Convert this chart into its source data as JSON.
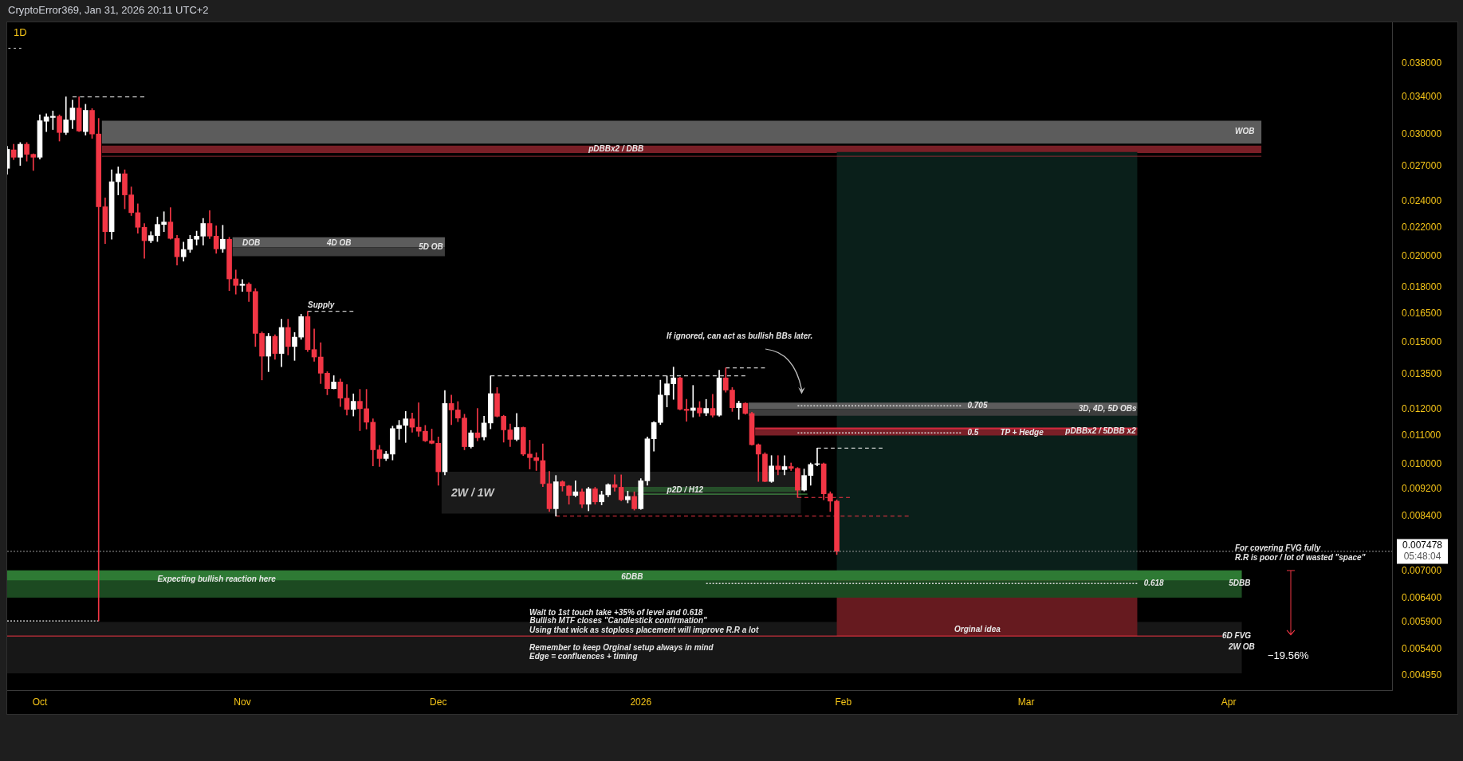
{
  "chart_data": {
    "type": "candlestick",
    "title": "1D",
    "subtitle": "CryptoError369, Jan 31, 2026 20:11 UTC+2",
    "x": [
      "2025-09-26",
      "2025-09-27",
      "2025-09-28",
      "2025-09-29",
      "2025-09-30",
      "2025-10-01",
      "2025-10-02",
      "2025-10-03",
      "2025-10-04",
      "2025-10-05",
      "2025-10-06",
      "2025-10-07",
      "2025-10-08",
      "2025-10-09",
      "2025-10-10",
      "2025-10-11",
      "2025-10-12",
      "2025-10-13",
      "2025-10-14",
      "2025-10-15",
      "2025-10-16",
      "2025-10-17",
      "2025-10-18",
      "2025-10-19",
      "2025-10-20",
      "2025-10-21",
      "2025-10-22",
      "2025-10-23",
      "2025-10-24",
      "2025-10-25",
      "2025-10-26",
      "2025-10-27",
      "2025-10-28",
      "2025-10-29",
      "2025-10-30",
      "2025-10-31",
      "2025-11-01",
      "2025-11-02",
      "2025-11-03",
      "2025-11-04",
      "2025-11-05",
      "2025-11-06",
      "2025-11-07",
      "2025-11-08",
      "2025-11-09",
      "2025-11-10",
      "2025-11-11",
      "2025-11-12",
      "2025-11-13",
      "2025-11-14",
      "2025-11-15",
      "2025-11-16",
      "2025-11-17",
      "2025-11-18",
      "2025-11-19",
      "2025-11-20",
      "2025-11-21",
      "2025-11-22",
      "2025-11-23",
      "2025-11-24",
      "2025-11-25",
      "2025-11-26",
      "2025-11-27",
      "2025-11-28",
      "2025-11-29",
      "2025-11-30",
      "2025-12-01",
      "2025-12-02",
      "2025-12-03",
      "2025-12-04",
      "2025-12-05",
      "2025-12-06",
      "2025-12-07",
      "2025-12-08",
      "2025-12-09",
      "2025-12-10",
      "2025-12-11",
      "2025-12-12",
      "2025-12-13",
      "2025-12-14",
      "2025-12-15",
      "2025-12-16",
      "2025-12-17",
      "2025-12-18",
      "2025-12-19",
      "2025-12-20",
      "2025-12-21",
      "2025-12-22",
      "2025-12-23",
      "2025-12-24",
      "2025-12-25",
      "2025-12-26",
      "2025-12-27",
      "2025-12-28",
      "2025-12-29",
      "2025-12-30",
      "2025-12-31",
      "2026-01-01",
      "2026-01-02",
      "2026-01-03",
      "2026-01-04",
      "2026-01-05",
      "2026-01-06",
      "2026-01-07",
      "2026-01-08",
      "2026-01-09",
      "2026-01-10",
      "2026-01-11",
      "2026-01-12",
      "2026-01-13",
      "2026-01-14",
      "2026-01-15",
      "2026-01-16",
      "2026-01-17",
      "2026-01-18",
      "2026-01-19",
      "2026-01-20",
      "2026-01-21",
      "2026-01-22",
      "2026-01-23",
      "2026-01-24",
      "2026-01-25",
      "2026-01-26",
      "2026-01-27",
      "2026-01-28",
      "2026-01-29",
      "2026-01-30",
      "2026-01-31"
    ],
    "ohlc": [
      [
        0.0268,
        0.02884,
        0.02627,
        0.02855
      ],
      [
        0.0285,
        0.02904,
        0.02759,
        0.02781
      ],
      [
        0.02781,
        0.02921,
        0.02706,
        0.02904
      ],
      [
        0.02904,
        0.02921,
        0.02745,
        0.02808
      ],
      [
        0.02808,
        0.02813,
        0.02661,
        0.02781
      ],
      [
        0.02781,
        0.03203,
        0.02764,
        0.03141
      ],
      [
        0.03135,
        0.03213,
        0.03029,
        0.03181
      ],
      [
        0.03175,
        0.03245,
        0.0305,
        0.03188
      ],
      [
        0.03188,
        0.03203,
        0.02935,
        0.0302
      ],
      [
        0.0302,
        0.03401,
        0.02999,
        0.0315
      ],
      [
        0.0315,
        0.03365,
        0.03059,
        0.03277
      ],
      [
        0.03277,
        0.03401,
        0.03029,
        0.03035
      ],
      [
        0.03029,
        0.03318,
        0.02994,
        0.03251
      ],
      [
        0.03251,
        0.03271,
        0.02962,
        0.03005
      ],
      [
        0.03005,
        0.03166,
        0.00593,
        0.02358
      ],
      [
        0.02358,
        0.02429,
        0.02085,
        0.0217
      ],
      [
        0.0217,
        0.02667,
        0.02116,
        0.02563
      ],
      [
        0.02563,
        0.02693,
        0.02453,
        0.02632
      ],
      [
        0.02632,
        0.02667,
        0.02342,
        0.02453
      ],
      [
        0.02453,
        0.02519,
        0.0229,
        0.02312
      ],
      [
        0.02312,
        0.02381,
        0.02159,
        0.02202
      ],
      [
        0.02202,
        0.0223,
        0.01986,
        0.02106
      ],
      [
        0.02106,
        0.0217,
        0.02092,
        0.02142
      ],
      [
        0.02142,
        0.02279,
        0.021,
        0.02223
      ],
      [
        0.02223,
        0.02319,
        0.0217,
        0.02241
      ],
      [
        0.02241,
        0.02351,
        0.02116,
        0.02122
      ],
      [
        0.02122,
        0.02144,
        0.01942,
        0.01996
      ],
      [
        0.01996,
        0.02096,
        0.01967,
        0.02045
      ],
      [
        0.02045,
        0.02144,
        0.02025,
        0.02116
      ],
      [
        0.02116,
        0.02174,
        0.02075,
        0.02138
      ],
      [
        0.02138,
        0.02268,
        0.02075,
        0.0223
      ],
      [
        0.0223,
        0.02328,
        0.0212,
        0.02138
      ],
      [
        0.02138,
        0.02213,
        0.02019,
        0.02049
      ],
      [
        0.02049,
        0.02217,
        0.02025,
        0.02116
      ],
      [
        0.02116,
        0.0213,
        0.01783,
        0.01854
      ],
      [
        0.01854,
        0.0191,
        0.01762,
        0.01814
      ],
      [
        0.01814,
        0.0185,
        0.01778,
        0.01822
      ],
      [
        0.01822,
        0.01831,
        0.01719,
        0.01778
      ],
      [
        0.01778,
        0.01795,
        0.0148,
        0.01546
      ],
      [
        0.01546,
        0.01554,
        0.01324,
        0.01433
      ],
      [
        0.01433,
        0.01546,
        0.01361,
        0.01531
      ],
      [
        0.01531,
        0.01539,
        0.01418,
        0.01446
      ],
      [
        0.01446,
        0.01621,
        0.01384,
        0.01577
      ],
      [
        0.01577,
        0.01621,
        0.01439,
        0.0148
      ],
      [
        0.0148,
        0.01551,
        0.01413,
        0.01527
      ],
      [
        0.01527,
        0.01648,
        0.01516,
        0.01635
      ],
      [
        0.01635,
        0.01664,
        0.01455,
        0.01465
      ],
      [
        0.01465,
        0.01569,
        0.01409,
        0.01429
      ],
      [
        0.01429,
        0.01499,
        0.01308,
        0.01354
      ],
      [
        0.01354,
        0.01361,
        0.0126,
        0.01286
      ],
      [
        0.01286,
        0.01343,
        0.01285,
        0.01315
      ],
      [
        0.01315,
        0.01328,
        0.01212,
        0.01246
      ],
      [
        0.01246,
        0.01304,
        0.01178,
        0.012
      ],
      [
        0.012,
        0.01264,
        0.01174,
        0.01233
      ],
      [
        0.01233,
        0.01283,
        0.01118,
        0.01203
      ],
      [
        0.01203,
        0.01283,
        0.01124,
        0.0115
      ],
      [
        0.0115,
        0.01163,
        0.00994,
        0.01049
      ],
      [
        0.01049,
        0.01065,
        0.00992,
        0.01019
      ],
      [
        0.01019,
        0.01044,
        0.01012,
        0.01034
      ],
      [
        0.01034,
        0.01135,
        0.01014,
        0.01126
      ],
      [
        0.01126,
        0.01157,
        0.01086,
        0.01138
      ],
      [
        0.01138,
        0.01192,
        0.01075,
        0.01163
      ],
      [
        0.01163,
        0.01186,
        0.01112,
        0.01131
      ],
      [
        0.01131,
        0.01227,
        0.01097,
        0.01116
      ],
      [
        0.01116,
        0.01138,
        0.01078,
        0.01081
      ],
      [
        0.01081,
        0.01124,
        0.0107,
        0.01072
      ],
      [
        0.01072,
        0.01095,
        0.00932,
        0.00975
      ],
      [
        0.00975,
        0.01278,
        0.00965,
        0.01224
      ],
      [
        0.01224,
        0.01259,
        0.01141,
        0.01198
      ],
      [
        0.01198,
        0.01232,
        0.01152,
        0.01166
      ],
      [
        0.01166,
        0.01181,
        0.01049,
        0.0106
      ],
      [
        0.0106,
        0.01119,
        0.01055,
        0.0111
      ],
      [
        0.0111,
        0.01204,
        0.01081,
        0.01092
      ],
      [
        0.01095,
        0.01173,
        0.01084,
        0.01147
      ],
      [
        0.01147,
        0.01342,
        0.01125,
        0.01265
      ],
      [
        0.01265,
        0.01291,
        0.0117,
        0.01173
      ],
      [
        0.01173,
        0.01177,
        0.01076,
        0.01121
      ],
      [
        0.01121,
        0.01143,
        0.0106,
        0.01086
      ],
      [
        0.01086,
        0.01184,
        0.01081,
        0.0113
      ],
      [
        0.0113,
        0.01132,
        0.01029,
        0.01034
      ],
      [
        0.01034,
        0.01083,
        0.00984,
        0.01022
      ],
      [
        0.01022,
        0.01039,
        0.00979,
        0.01012
      ],
      [
        0.01012,
        0.0107,
        0.00928,
        0.00937
      ],
      [
        0.00937,
        0.00976,
        0.00854,
        0.00862
      ],
      [
        0.00862,
        0.00963,
        0.00841,
        0.00943
      ],
      [
        0.00943,
        0.00946,
        0.00914,
        0.0093
      ],
      [
        0.0093,
        0.00932,
        0.00875,
        0.00901
      ],
      [
        0.00901,
        0.00946,
        0.00897,
        0.00912
      ],
      [
        0.00912,
        0.00921,
        0.00865,
        0.00875
      ],
      [
        0.00875,
        0.00926,
        0.00856,
        0.00921
      ],
      [
        0.00921,
        0.00926,
        0.00875,
        0.00882
      ],
      [
        0.00882,
        0.00914,
        0.00873,
        0.00903
      ],
      [
        0.00903,
        0.00937,
        0.00897,
        0.00934
      ],
      [
        0.00934,
        0.00965,
        0.00914,
        0.00926
      ],
      [
        0.00926,
        0.00965,
        0.00885,
        0.00888
      ],
      [
        0.00888,
        0.00914,
        0.00879,
        0.00898
      ],
      [
        0.00898,
        0.00912,
        0.00858,
        0.00862
      ],
      [
        0.00862,
        0.00953,
        0.0086,
        0.00946
      ],
      [
        0.00946,
        0.01095,
        0.00932,
        0.01088
      ],
      [
        0.01088,
        0.01152,
        0.01044,
        0.01149
      ],
      [
        0.01149,
        0.01323,
        0.01141,
        0.01259
      ],
      [
        0.01259,
        0.01342,
        0.0121,
        0.01307
      ],
      [
        0.01307,
        0.01382,
        0.01241,
        0.01333
      ],
      [
        0.01333,
        0.01336,
        0.01198,
        0.01201
      ],
      [
        0.01201,
        0.01241,
        0.01154,
        0.01196
      ],
      [
        0.01196,
        0.013,
        0.0117,
        0.01206
      ],
      [
        0.01206,
        0.01232,
        0.01173,
        0.01186
      ],
      [
        0.01186,
        0.01241,
        0.01175,
        0.01204
      ],
      [
        0.01204,
        0.01262,
        0.0117,
        0.01177
      ],
      [
        0.01177,
        0.01368,
        0.01173,
        0.01333
      ],
      [
        0.01333,
        0.01378,
        0.01271,
        0.0128
      ],
      [
        0.0128,
        0.01291,
        0.01192,
        0.01207
      ],
      [
        0.01207,
        0.01234,
        0.01161,
        0.01225
      ],
      [
        0.01225,
        0.01227,
        0.01181,
        0.01184
      ],
      [
        0.01184,
        0.01189,
        0.01065,
        0.01067
      ],
      [
        0.01067,
        0.0107,
        0.00944,
        0.01034
      ],
      [
        0.01034,
        0.01039,
        0.00943,
        0.00944
      ],
      [
        0.00944,
        0.01029,
        0.00941,
        0.00994
      ],
      [
        0.00994,
        0.01029,
        0.00965,
        0.00982
      ],
      [
        0.00982,
        0.01029,
        0.00965,
        0.00992
      ],
      [
        0.00992,
        0.01004,
        0.00979,
        0.00986
      ],
      [
        0.00986,
        0.00989,
        0.00895,
        0.00917
      ],
      [
        0.00917,
        0.00984,
        0.00914,
        0.00963
      ],
      [
        0.00963,
        0.01004,
        0.00932,
        0.00999
      ],
      [
        0.00999,
        0.01055,
        0.00994,
        0.01001
      ],
      [
        0.01001,
        0.01004,
        0.00888,
        0.00906
      ],
      [
        0.00906,
        0.00912,
        0.00854,
        0.00884
      ],
      [
        0.00884,
        0.00888,
        0.0074,
        0.007478
      ]
    ],
    "colors": [
      "#ffffff",
      "#f23645",
      "#ffffff",
      "#f23645",
      "#f23645",
      "#ffffff",
      "#ffffff",
      "#ffffff",
      "#f23645",
      "#ffffff",
      "#ffffff",
      "#f23645",
      "#ffffff",
      "#f23645",
      "#f23645",
      "#f23645",
      "#ffffff",
      "#ffffff",
      "#f23645",
      "#f23645",
      "#f23645",
      "#f23645",
      "#ffffff",
      "#ffffff",
      "#ffffff",
      "#f23645",
      "#f23645",
      "#ffffff",
      "#ffffff",
      "#ffffff",
      "#ffffff",
      "#f23645",
      "#f23645",
      "#ffffff",
      "#f23645",
      "#f23645",
      "#ffffff",
      "#f23645",
      "#f23645",
      "#f23645",
      "#ffffff",
      "#f23645",
      "#ffffff",
      "#f23645",
      "#ffffff",
      "#ffffff",
      "#f23645",
      "#f23645",
      "#f23645",
      "#f23645",
      "#ffffff",
      "#f23645",
      "#f23645",
      "#ffffff",
      "#f23645",
      "#f23645",
      "#f23645",
      "#f23645",
      "#ffffff",
      "#ffffff",
      "#ffffff",
      "#ffffff",
      "#f23645",
      "#f23645",
      "#f23645",
      "#f23645",
      "#f23645",
      "#ffffff",
      "#f23645",
      "#f23645",
      "#f23645",
      "#ffffff",
      "#f23645",
      "#ffffff",
      "#ffffff",
      "#f23645",
      "#f23645",
      "#f23645",
      "#ffffff",
      "#f23645",
      "#f23645",
      "#f23645",
      "#f23645",
      "#f23645",
      "#ffffff",
      "#f23645",
      "#f23645",
      "#ffffff",
      "#f23645",
      "#ffffff",
      "#f23645",
      "#ffffff",
      "#ffffff",
      "#f23645",
      "#f23645",
      "#ffffff",
      "#f23645",
      "#ffffff",
      "#ffffff",
      "#ffffff",
      "#ffffff",
      "#ffffff",
      "#ffffff",
      "#f23645",
      "#f23645",
      "#ffffff",
      "#f23645",
      "#ffffff",
      "#f23645",
      "#ffffff",
      "#f23645",
      "#f23645",
      "#ffffff",
      "#f23645",
      "#f23645",
      "#f23645",
      "#f23645",
      "#ffffff",
      "#f23645",
      "#ffffff",
      "#f23645",
      "#f23645",
      "#ffffff",
      "#ffffff",
      "#ffffff",
      "#f23645",
      "#f23645",
      "#f23645"
    ],
    "xlim": [
      "2025-09-26",
      "2026-04-26"
    ],
    "xticks": [
      {
        "value": "2025-10-01",
        "label": "Oct"
      },
      {
        "value": "2025-11-01",
        "label": "Nov"
      },
      {
        "value": "2025-12-01",
        "label": "Dec"
      },
      {
        "value": "2026-01-01",
        "label": "2026"
      },
      {
        "value": "2026-02-01",
        "label": "Feb"
      },
      {
        "value": "2026-03-01",
        "label": "Mar"
      },
      {
        "value": "2026-04-01",
        "label": "Apr"
      }
    ],
    "ylim": [
      0.00471,
      0.0436
    ],
    "log": true,
    "yticks": [
      {
        "value": 0.038,
        "label": "0.038000"
      },
      {
        "value": 0.034,
        "label": "0.034000"
      },
      {
        "value": 0.03,
        "label": "0.030000"
      },
      {
        "value": 0.027,
        "label": "0.027000"
      },
      {
        "value": 0.024,
        "label": "0.024000"
      },
      {
        "value": 0.022,
        "label": "0.022000"
      },
      {
        "value": 0.02,
        "label": "0.020000"
      },
      {
        "value": 0.018,
        "label": "0.018000"
      },
      {
        "value": 0.0165,
        "label": "0.016500"
      },
      {
        "value": 0.015,
        "label": "0.015000"
      },
      {
        "value": 0.0135,
        "label": "0.013500"
      },
      {
        "value": 0.012,
        "label": "0.012000"
      },
      {
        "value": 0.011,
        "label": "0.011000"
      },
      {
        "value": 0.01,
        "label": "0.010000"
      },
      {
        "value": 0.0092,
        "label": "0.009200"
      },
      {
        "value": 0.0084,
        "label": "0.008400"
      },
      {
        "value": 0.007,
        "label": "0.007000"
      },
      {
        "value": 0.0064,
        "label": "0.006400"
      },
      {
        "value": 0.0059,
        "label": "0.005900"
      },
      {
        "value": 0.0054,
        "label": "0.005400"
      },
      {
        "value": 0.00495,
        "label": "0.004950"
      }
    ],
    "grid": false,
    "legend": false,
    "series": [
      {
        "type": "line",
        "x": [
          "2025-09-26",
          "2026-04-03"
        ],
        "values": [
          null,
          null
        ],
        "lower": [
          0.00498,
          0.00498
        ],
        "upper": [
          0.00591,
          0.00591
        ],
        "color": "#171717"
      },
      {
        "type": "line",
        "x": [
          "2025-10-10T12:00",
          "2026-04-06"
        ],
        "values": [
          null,
          null
        ],
        "lower": [
          0.0291,
          0.0291
        ],
        "upper": [
          0.0314,
          0.0314
        ],
        "color": "#5c5c5c"
      },
      {
        "type": "line",
        "x": [
          "2025-10-10T12:00",
          "2026-04-06"
        ],
        "values": [
          null,
          null
        ],
        "lower": [
          0.0282,
          0.0282
        ],
        "upper": [
          0.0289,
          0.0289
        ],
        "color": "#7a1f27"
      },
      {
        "type": "line",
        "x": [
          "2026-01-31",
          "2026-03-18"
        ],
        "values": [
          null,
          null
        ],
        "lower": [
          0.00701,
          0.00701
        ],
        "upper": [
          0.0283,
          0.0283
        ],
        "color": "#0a1f1a"
      },
      {
        "type": "line",
        "x": [
          "2026-01-31",
          "2026-03-18"
        ],
        "values": [
          null,
          null
        ],
        "lower": [
          0.00564,
          0.00564
        ],
        "upper": [
          0.00701,
          0.00701
        ],
        "color": "#661a1f"
      },
      {
        "type": "line",
        "x": [
          "2025-09-26",
          "2026-04-03"
        ],
        "values": [
          null,
          null
        ],
        "lower": [
          0.00678,
          0.00678
        ],
        "upper": [
          0.00702,
          0.00702
        ],
        "color": "#2e7a34"
      },
      {
        "type": "line",
        "x": [
          "2025-09-26",
          "2026-04-03"
        ],
        "values": [
          null,
          null
        ],
        "lower": [
          0.00641,
          0.00641
        ],
        "upper": [
          0.00678,
          0.00678
        ],
        "color": "#1c4a21"
      },
      {
        "type": "line",
        "x": [
          "2025-10-10T12:00",
          "2026-04-06"
        ],
        "values": [
          0.0279,
          0.0279
        ],
        "color": "#8c2a33",
        "line_style": "solid"
      },
      {
        "type": "line",
        "x": [
          "2025-10-30T12:00",
          "2025-12-02"
        ],
        "values": [
          null,
          null
        ],
        "lower": [
          0.0206,
          0.0206
        ],
        "upper": [
          0.0213,
          0.0213
        ],
        "color": "#5c5c5c"
      },
      {
        "type": "line",
        "x": [
          "2025-10-30T12:00",
          "2025-12-02"
        ],
        "values": [
          null,
          null
        ],
        "lower": [
          0.02,
          0.02
        ],
        "upper": [
          0.0206,
          0.0206
        ],
        "color": "#3d3d3d"
      },
      {
        "type": "line",
        "x": [
          "2025-12-01T12:00",
          "2026-01-25T12:00"
        ],
        "values": [
          null,
          null
        ],
        "lower": [
          0.00848,
          0.00848
        ],
        "upper": [
          0.00975,
          0.00975
        ],
        "color": "#1a1a1a"
      },
      {
        "type": "line",
        "x": [
          "2025-12-29T12:00",
          "2026-01-25T12:00"
        ],
        "values": [
          null,
          null
        ],
        "lower": [
          0.00911,
          0.00911
        ],
        "upper": [
          0.00927,
          0.00927
        ],
        "color": "#264f2a"
      },
      {
        "type": "line",
        "x": [
          "2025-12-31T12:00",
          "2026-01-26T12:00"
        ],
        "values": [
          0.00905,
          0.00905
        ],
        "color": "#4caf50",
        "line_style": "solid"
      },
      {
        "type": "line",
        "x": [
          "2026-01-17T12:00",
          "2026-03-18"
        ],
        "values": [
          null,
          null
        ],
        "lower": [
          0.01202,
          0.01202
        ],
        "upper": [
          0.01228,
          0.01228
        ],
        "color": "#5c5c5c"
      },
      {
        "type": "line",
        "x": [
          "2026-01-17T12:00",
          "2026-03-18"
        ],
        "values": [
          null,
          null
        ],
        "lower": [
          0.01175,
          0.01175
        ],
        "upper": [
          0.01202,
          0.01202
        ],
        "color": "#3d3d3d"
      },
      {
        "type": "line",
        "x": [
          "2026-01-18T12:00",
          "2026-03-18"
        ],
        "values": [
          null,
          null
        ],
        "lower": [
          0.01122,
          0.01122
        ],
        "upper": [
          0.0113,
          0.0113
        ],
        "color": "#c9283b"
      },
      {
        "type": "line",
        "x": [
          "2026-01-18T12:00",
          "2026-03-18"
        ],
        "values": [
          null,
          null
        ],
        "lower": [
          0.011,
          0.011
        ],
        "upper": [
          0.01122,
          0.01122
        ],
        "color": "#7a1f27"
      },
      {
        "type": "line",
        "x": [
          "2025-10-06",
          "2025-10-17"
        ],
        "values": [
          0.034,
          0.034
        ],
        "color": "#ffffff",
        "line_style": "dashed"
      },
      {
        "type": "line",
        "x": [
          "2025-11-11",
          "2025-11-18"
        ],
        "values": [
          0.01664,
          0.01664
        ],
        "color": "#ffffff",
        "line_style": "dashed"
      },
      {
        "type": "line",
        "x": [
          "2025-12-09",
          "2026-01-17"
        ],
        "values": [
          0.01342,
          0.01342
        ],
        "color": "#ffffff",
        "line_style": "dashed"
      },
      {
        "type": "line",
        "x": [
          "2026-01-14",
          "2026-01-20"
        ],
        "values": [
          0.01378,
          0.01378
        ],
        "color": "#ffffff",
        "line_style": "dashed"
      },
      {
        "type": "line",
        "x": [
          "2026-01-28",
          "2026-02-07"
        ],
        "values": [
          0.01055,
          0.01055
        ],
        "color": "#ffffff",
        "line_style": "dashed"
      },
      {
        "type": "line",
        "x": [
          "2025-12-19",
          "2026-02-11"
        ],
        "values": [
          0.00841,
          0.00841
        ],
        "color": "#f23645",
        "line_style": "dashed"
      },
      {
        "type": "line",
        "x": [
          "2026-01-25",
          "2026-02-02"
        ],
        "values": [
          0.00895,
          0.00895
        ],
        "color": "#f23645",
        "line_style": "dashed"
      },
      {
        "type": "line",
        "x": [
          "2025-09-26",
          "2025-10-10"
        ],
        "values": [
          0.00593,
          0.00593
        ],
        "color": "#d9d9d9",
        "line_style": "dotted"
      },
      {
        "type": "line",
        "x": [
          "2026-01-25",
          "2026-02-19"
        ],
        "values": [
          0.01215,
          0.01215
        ],
        "color": "#d9d9d9",
        "line_style": "dotted"
      },
      {
        "type": "line",
        "x": [
          "2026-01-25",
          "2026-02-19"
        ],
        "values": [
          0.0111,
          0.0111
        ],
        "color": "#d9d9d9",
        "line_style": "dotted"
      },
      {
        "type": "line",
        "x": [
          "2026-01-11",
          "2026-03-18"
        ],
        "values": [
          0.00672,
          0.00672
        ],
        "color": "#d9d9d9",
        "line_style": "dotted"
      },
      {
        "type": "line",
        "x": [
          "2025-09-26",
          "2026-03-31"
        ],
        "values": [
          0.00564,
          0.00564
        ],
        "color": "#f23645",
        "line_style": "solid"
      }
    ],
    "ref_lines": [
      {
        "axis": "y",
        "value": 0.007478,
        "label": "0.007478\n05:48:04",
        "line_style": "dotted",
        "color": "#9a9a9a"
      }
    ],
    "annotations": [
      {
        "text": "pDBBx2 / DBB",
        "x": "2025-12-24",
        "y": 0.0286
      },
      {
        "text": "5D OB",
        "x": "2025-11-28",
        "y": 0.0206
      },
      {
        "text": "p2D / H12",
        "x": "2026-01-05",
        "y": 0.00917
      },
      {
        "text": "0.705",
        "x": "2026-02-20",
        "y": 0.01215
      },
      {
        "text": "3D, 4D, 5D OBs",
        "x": "2026-03-09",
        "y": 0.01202
      },
      {
        "text": "0.5",
        "x": "2026-02-20",
        "y": 0.0111
      },
      {
        "text": "TP + Hedge",
        "x": "2026-02-25",
        "y": 0.0111
      },
      {
        "text": "pDBBx2 / 5DBB x2",
        "x": "2026-03-07",
        "y": 0.01116
      },
      {
        "text": "Expecting bullish reaction here",
        "x": "2025-10-19",
        "y": 0.0068
      },
      {
        "text": "6DBB",
        "x": "2025-12-29",
        "y": 0.00686
      },
      {
        "text": "0.618",
        "x": "2026-03-19",
        "y": 0.00672
      },
      {
        "text": "5DBB",
        "x": "2026-04-01",
        "y": 0.00671
      },
      {
        "text": "Bullish MTF closes \"Candlestick confirmation\"",
        "x": "2025-12-15",
        "y": 0.00593
      },
      {
        "text": "6D FVG",
        "x": "2026-03-31",
        "y": 0.00564
      },
      "- - -",
      "WOB",
      "DOB",
      "4D OB",
      "Supply",
      "2W / 1W",
      "If ignored, can act as bullish BBs later.",
      "For covering FVG fully",
      "R.R is poor / lot of wasted \"space\"",
      "Wait to 1st touch take +35% of level and 0.618",
      "Using that wick as stoploss placement will improve R.R a lot",
      "Orginal idea",
      "2W OB",
      "Remember to keep Orginal setup always in mind",
      "Edge = confluences + timing",
      "−19.56%"
    ]
  }
}
